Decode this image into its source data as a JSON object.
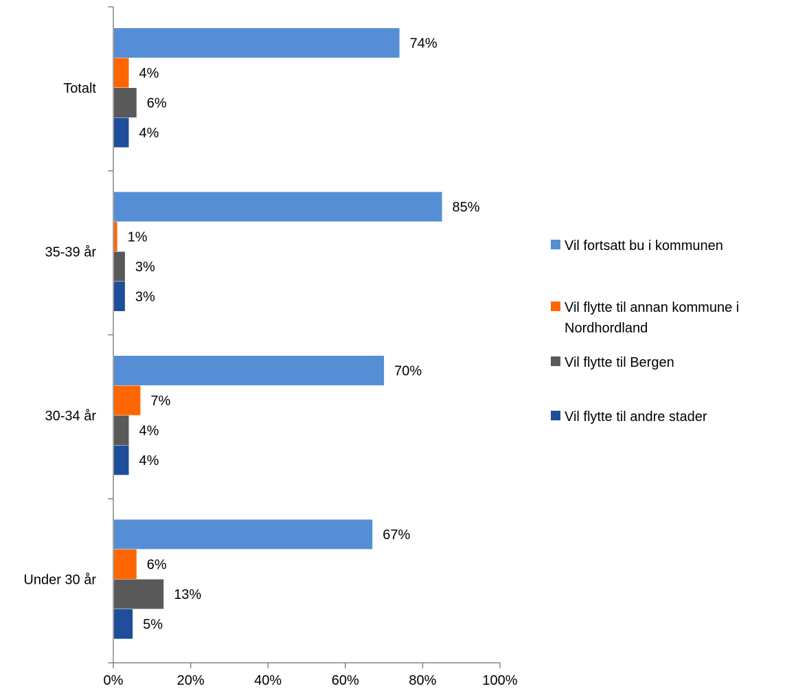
{
  "chart_data": {
    "type": "bar",
    "orientation": "horizontal",
    "title": "",
    "xlabel": "",
    "ylabel": "",
    "xlim": [
      0,
      100
    ],
    "x_ticks": [
      "0%",
      "20%",
      "40%",
      "60%",
      "80%",
      "100%"
    ],
    "categories": [
      "Totalt",
      "35-39 år",
      "30-34 år",
      "Under 30 år"
    ],
    "series": [
      {
        "name": "Vil fortsatt bu i kommunen",
        "color": "#558ED5",
        "values": [
          74,
          85,
          70,
          67
        ],
        "labels": [
          "74%",
          "85%",
          "70%",
          "67%"
        ]
      },
      {
        "name": "Vil flytte til annan kommune i Nordhordland",
        "color": "#FF6600",
        "values": [
          4,
          1,
          7,
          6
        ],
        "labels": [
          "4%",
          "1%",
          "7%",
          "6%"
        ]
      },
      {
        "name": "Vil flytte til Bergen",
        "color": "#595959",
        "values": [
          6,
          3,
          4,
          13
        ],
        "labels": [
          "6%",
          "3%",
          "4%",
          "13%"
        ]
      },
      {
        "name": "Vil flytte til andre stader",
        "color": "#1F4E9A",
        "values": [
          4,
          3,
          4,
          5
        ],
        "labels": [
          "4%",
          "3%",
          "4%",
          "5%"
        ]
      }
    ],
    "grid": false,
    "legend_position": "right"
  }
}
